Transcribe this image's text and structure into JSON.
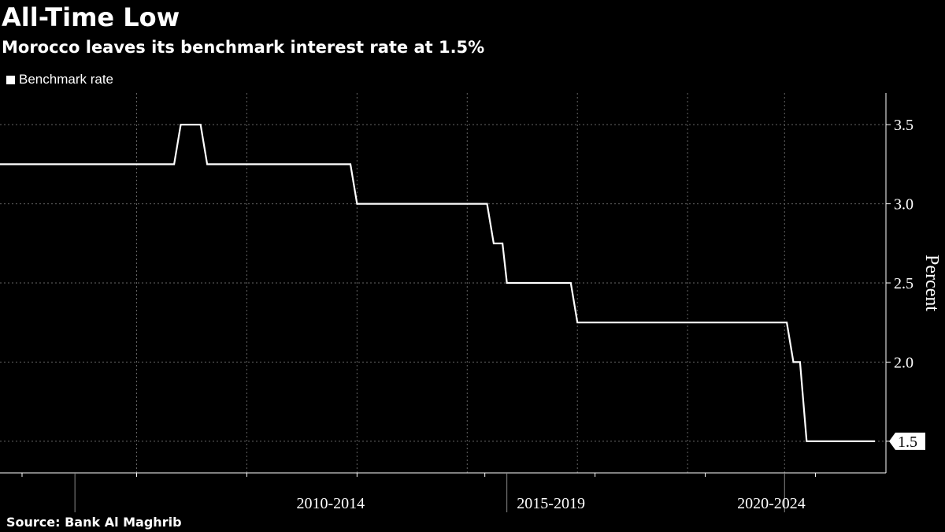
{
  "header": {
    "title": "All-Time Low",
    "subtitle": "Morocco leaves its benchmark interest rate at 1.5%"
  },
  "legend": {
    "label": "Benchmark rate"
  },
  "footer": {
    "source": "Source:  Bank Al Maghrib"
  },
  "colors": {
    "background": "#000000",
    "line": "#ffffff",
    "grid": "#666666"
  },
  "chart_data": {
    "type": "line",
    "title": "All-Time Low",
    "subtitle": "Morocco leaves its benchmark interest rate at 1.5%",
    "ylabel": "Percent",
    "xlabel": "",
    "ylim": [
      1.3,
      3.7
    ],
    "xlim": [
      2005.0,
      2025.1
    ],
    "yticks": [
      1.5,
      2.0,
      2.5,
      3.0,
      3.5
    ],
    "ytick_labels": [
      "1.5",
      "2.0",
      "2.5",
      "3.0",
      "3.5"
    ],
    "x_period_labels": [
      {
        "label": "2010-2014",
        "center": 2012.5
      },
      {
        "label": "2015-2019",
        "center": 2017.5
      },
      {
        "label": "2020-2024",
        "center": 2022.5
      }
    ],
    "x_period_boundaries": [
      2006.7,
      2016.5,
      2022.8
    ],
    "x_minor_ticks": [
      2005.5,
      2008.1,
      2010.6,
      2013.1,
      2016.0,
      2018.5,
      2021.0,
      2023.5
    ],
    "x_gridlines": [
      2008.1,
      2010.6,
      2013.1,
      2015.6,
      2018.1,
      2020.6,
      2022.8
    ],
    "last_value_label": "1.5",
    "grid": true,
    "legend_position": "top-left",
    "series": [
      {
        "name": "Benchmark rate",
        "x": [
          2005.0,
          2008.95,
          2009.1,
          2009.55,
          2009.7,
          2012.95,
          2013.1,
          2016.05,
          2016.2,
          2016.4,
          2016.5,
          2017.95,
          2018.1,
          2022.85,
          2023.0,
          2023.15,
          2023.3,
          2024.85
        ],
        "y": [
          3.25,
          3.25,
          3.5,
          3.5,
          3.25,
          3.25,
          3.0,
          3.0,
          2.75,
          2.75,
          2.5,
          2.5,
          2.25,
          2.25,
          2.0,
          2.0,
          1.5,
          1.5
        ]
      }
    ]
  }
}
